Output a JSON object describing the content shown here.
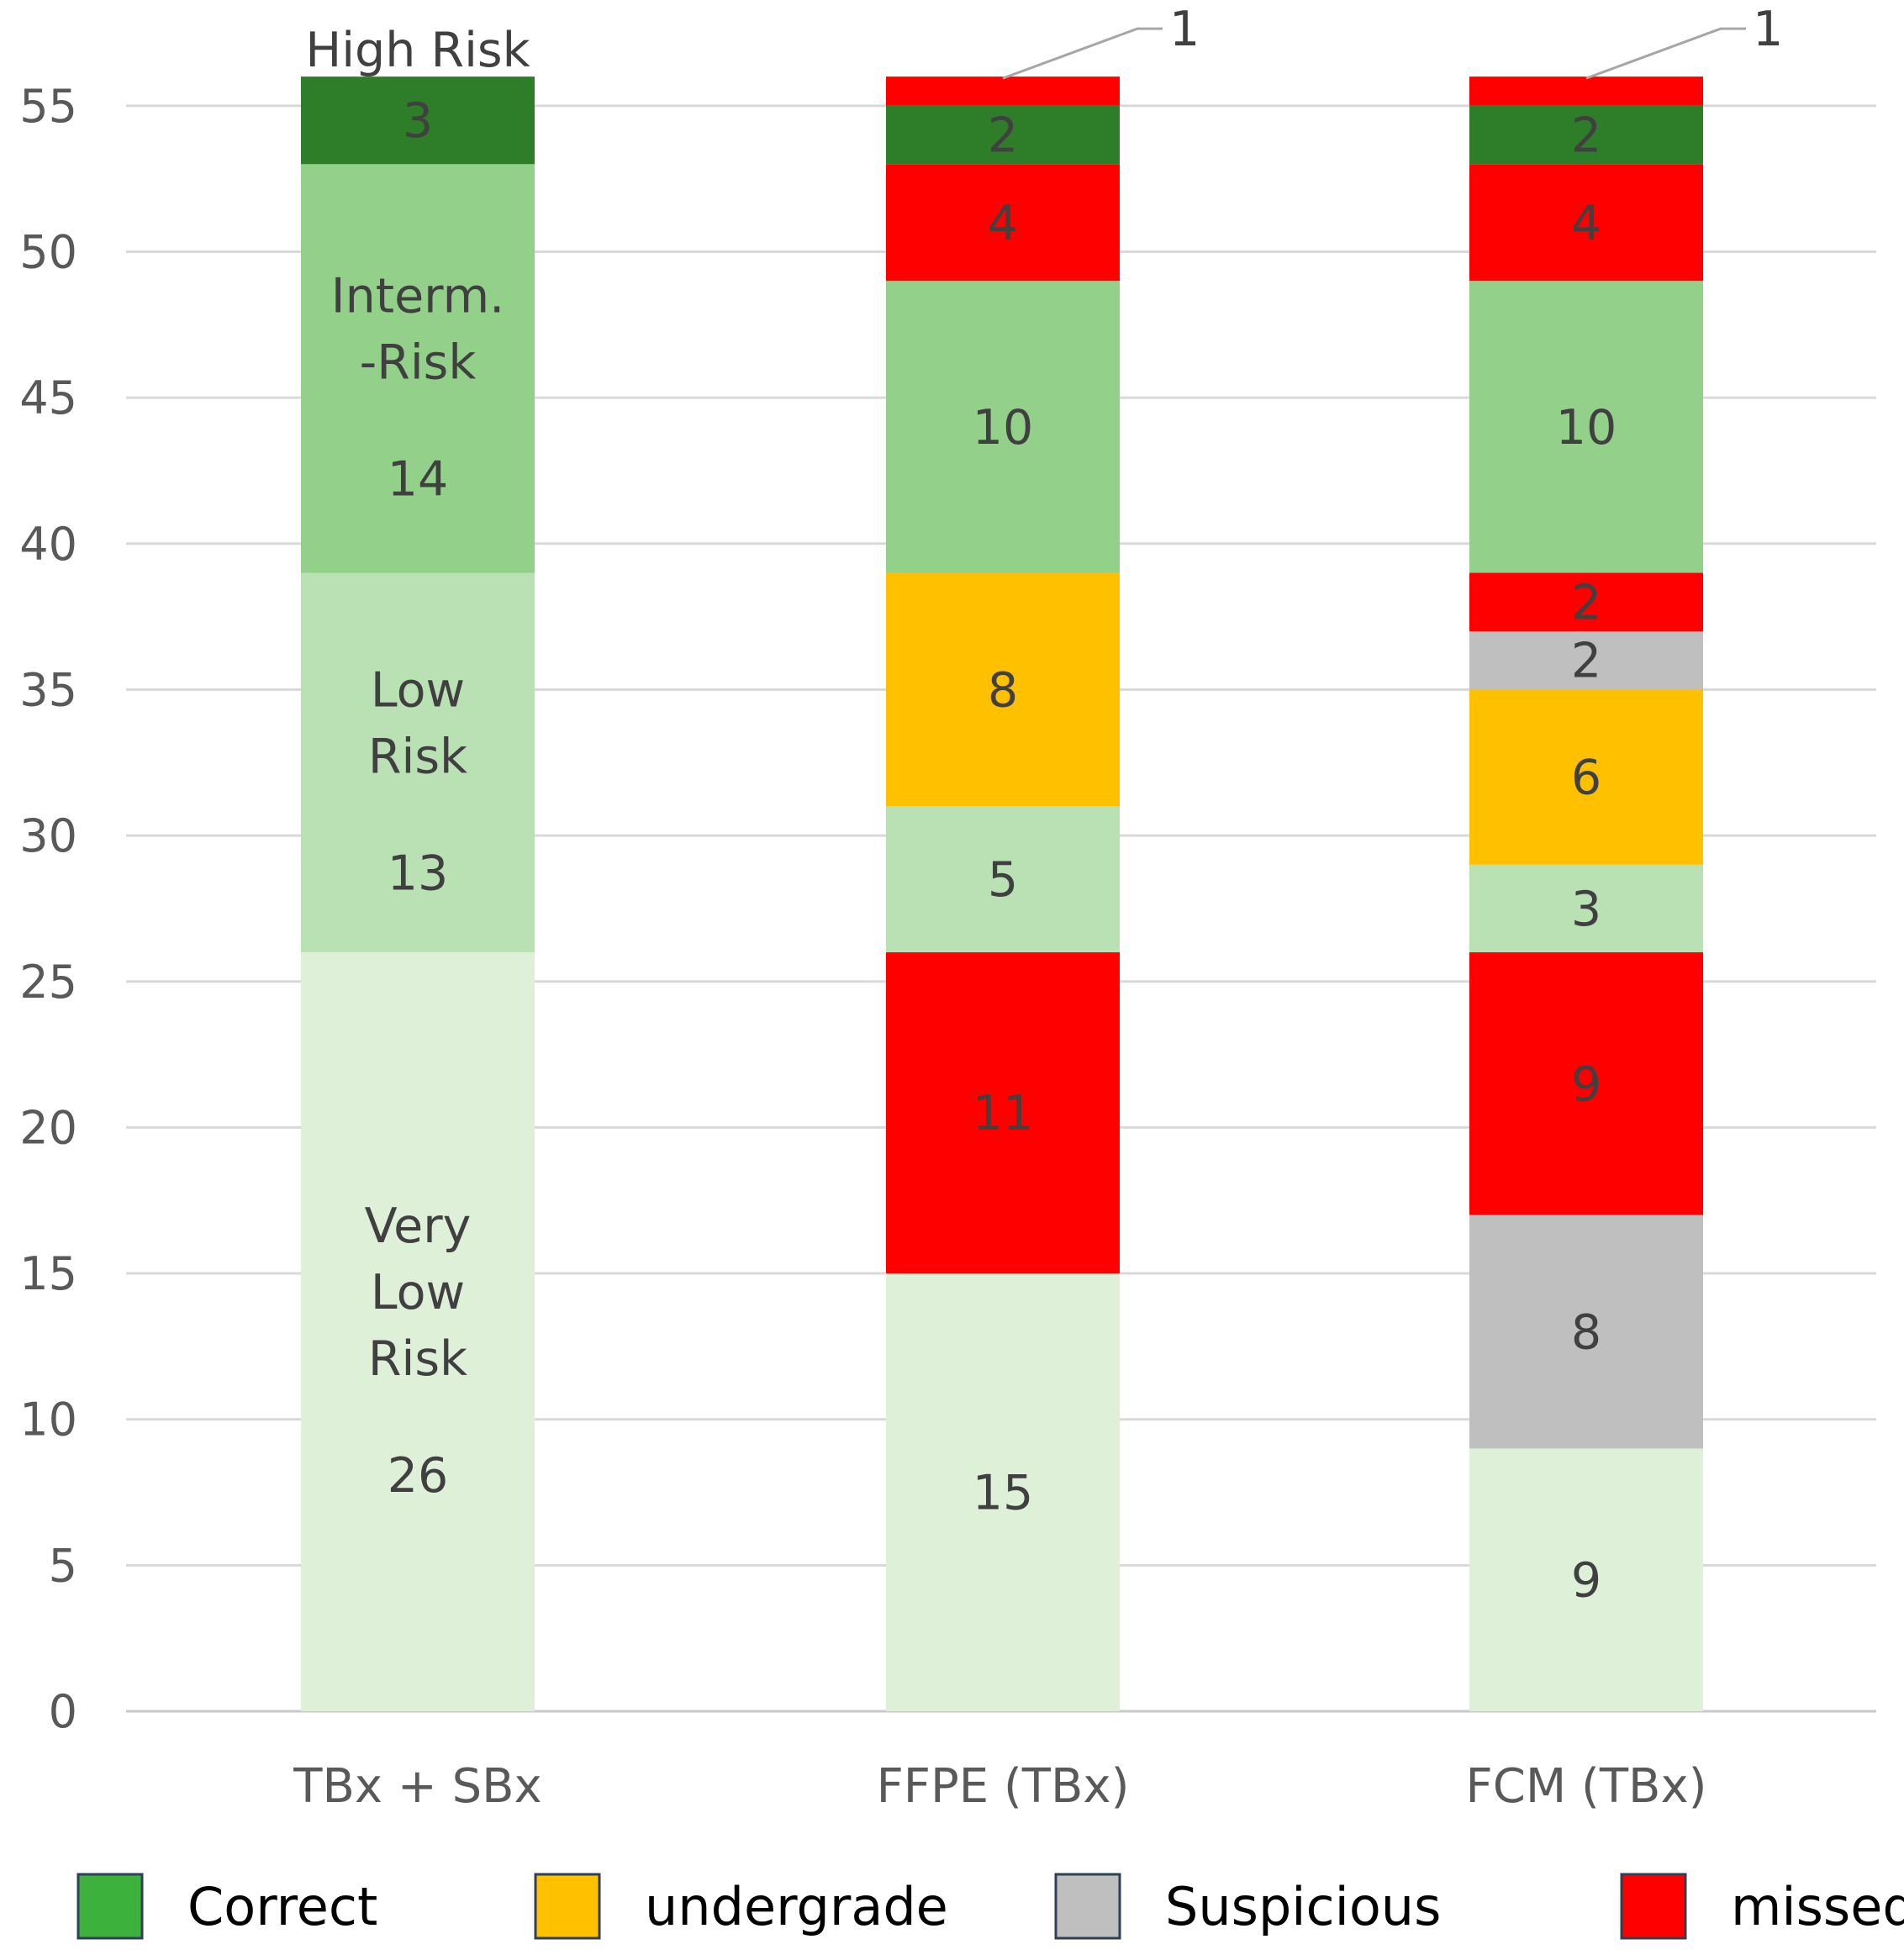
{
  "chart_data": {
    "type": "bar",
    "stacked": true,
    "title": "",
    "xlabel": "",
    "ylabel": "",
    "ylim": [
      0,
      55
    ],
    "yticks": [
      0,
      5,
      10,
      15,
      20,
      25,
      30,
      35,
      40,
      45,
      50,
      55
    ],
    "grid": "horizontal",
    "legend_position": "bottom",
    "categories": [
      "TBx + SBx",
      "FFPE (TBx)",
      "FCM (TBx)"
    ],
    "legend": [
      {
        "name": "Correct",
        "color": "#3cb13c"
      },
      {
        "name": "undergrade",
        "color": "#ffc000"
      },
      {
        "name": "Suspicious",
        "color": "#bfbfbf"
      },
      {
        "name": "missed",
        "color": "#ff0000"
      }
    ],
    "stacks": [
      {
        "category": "TBx + SBx",
        "segments": [
          {
            "value": 26,
            "label": "26",
            "color": "#dff0d8",
            "annotation": [
              "Very",
              "Low",
              "Risk"
            ]
          },
          {
            "value": 13,
            "label": "13",
            "color": "#b9e1b3",
            "annotation": [
              "Low",
              "Risk"
            ]
          },
          {
            "value": 14,
            "label": "14",
            "color": "#93d18b",
            "annotation": [
              "Interm.",
              "-Risk"
            ]
          },
          {
            "value": 3,
            "label": "3",
            "color": "#2e7d28",
            "annotation_above": "High Risk"
          }
        ]
      },
      {
        "category": "FFPE (TBx)",
        "segments": [
          {
            "value": 15,
            "label": "15",
            "color": "#dff0d8"
          },
          {
            "value": 11,
            "label": "11",
            "color": "#ff0000"
          },
          {
            "value": 5,
            "label": "5",
            "color": "#b9e1b3"
          },
          {
            "value": 8,
            "label": "8",
            "color": "#ffc000"
          },
          {
            "value": 10,
            "label": "10",
            "color": "#93d18b"
          },
          {
            "value": 4,
            "label": "4",
            "color": "#ff0000"
          },
          {
            "value": 2,
            "label": "2",
            "color": "#2e7d28"
          },
          {
            "value": 1,
            "label": "1",
            "color": "#ff0000",
            "callout": true
          }
        ]
      },
      {
        "category": "FCM (TBx)",
        "segments": [
          {
            "value": 9,
            "label": "9",
            "color": "#dff0d8"
          },
          {
            "value": 8,
            "label": "8",
            "color": "#bfbfbf"
          },
          {
            "value": 9,
            "label": "9",
            "color": "#ff0000"
          },
          {
            "value": 3,
            "label": "3",
            "color": "#b9e1b3"
          },
          {
            "value": 6,
            "label": "6",
            "color": "#ffc000"
          },
          {
            "value": 2,
            "label": "2",
            "color": "#bfbfbf"
          },
          {
            "value": 2,
            "label": "2",
            "color": "#ff0000"
          },
          {
            "value": 10,
            "label": "10",
            "color": "#93d18b"
          },
          {
            "value": 4,
            "label": "4",
            "color": "#ff0000"
          },
          {
            "value": 2,
            "label": "2",
            "color": "#2e7d28"
          },
          {
            "value": 1,
            "label": "1",
            "color": "#ff0000",
            "callout": true
          }
        ]
      }
    ]
  }
}
